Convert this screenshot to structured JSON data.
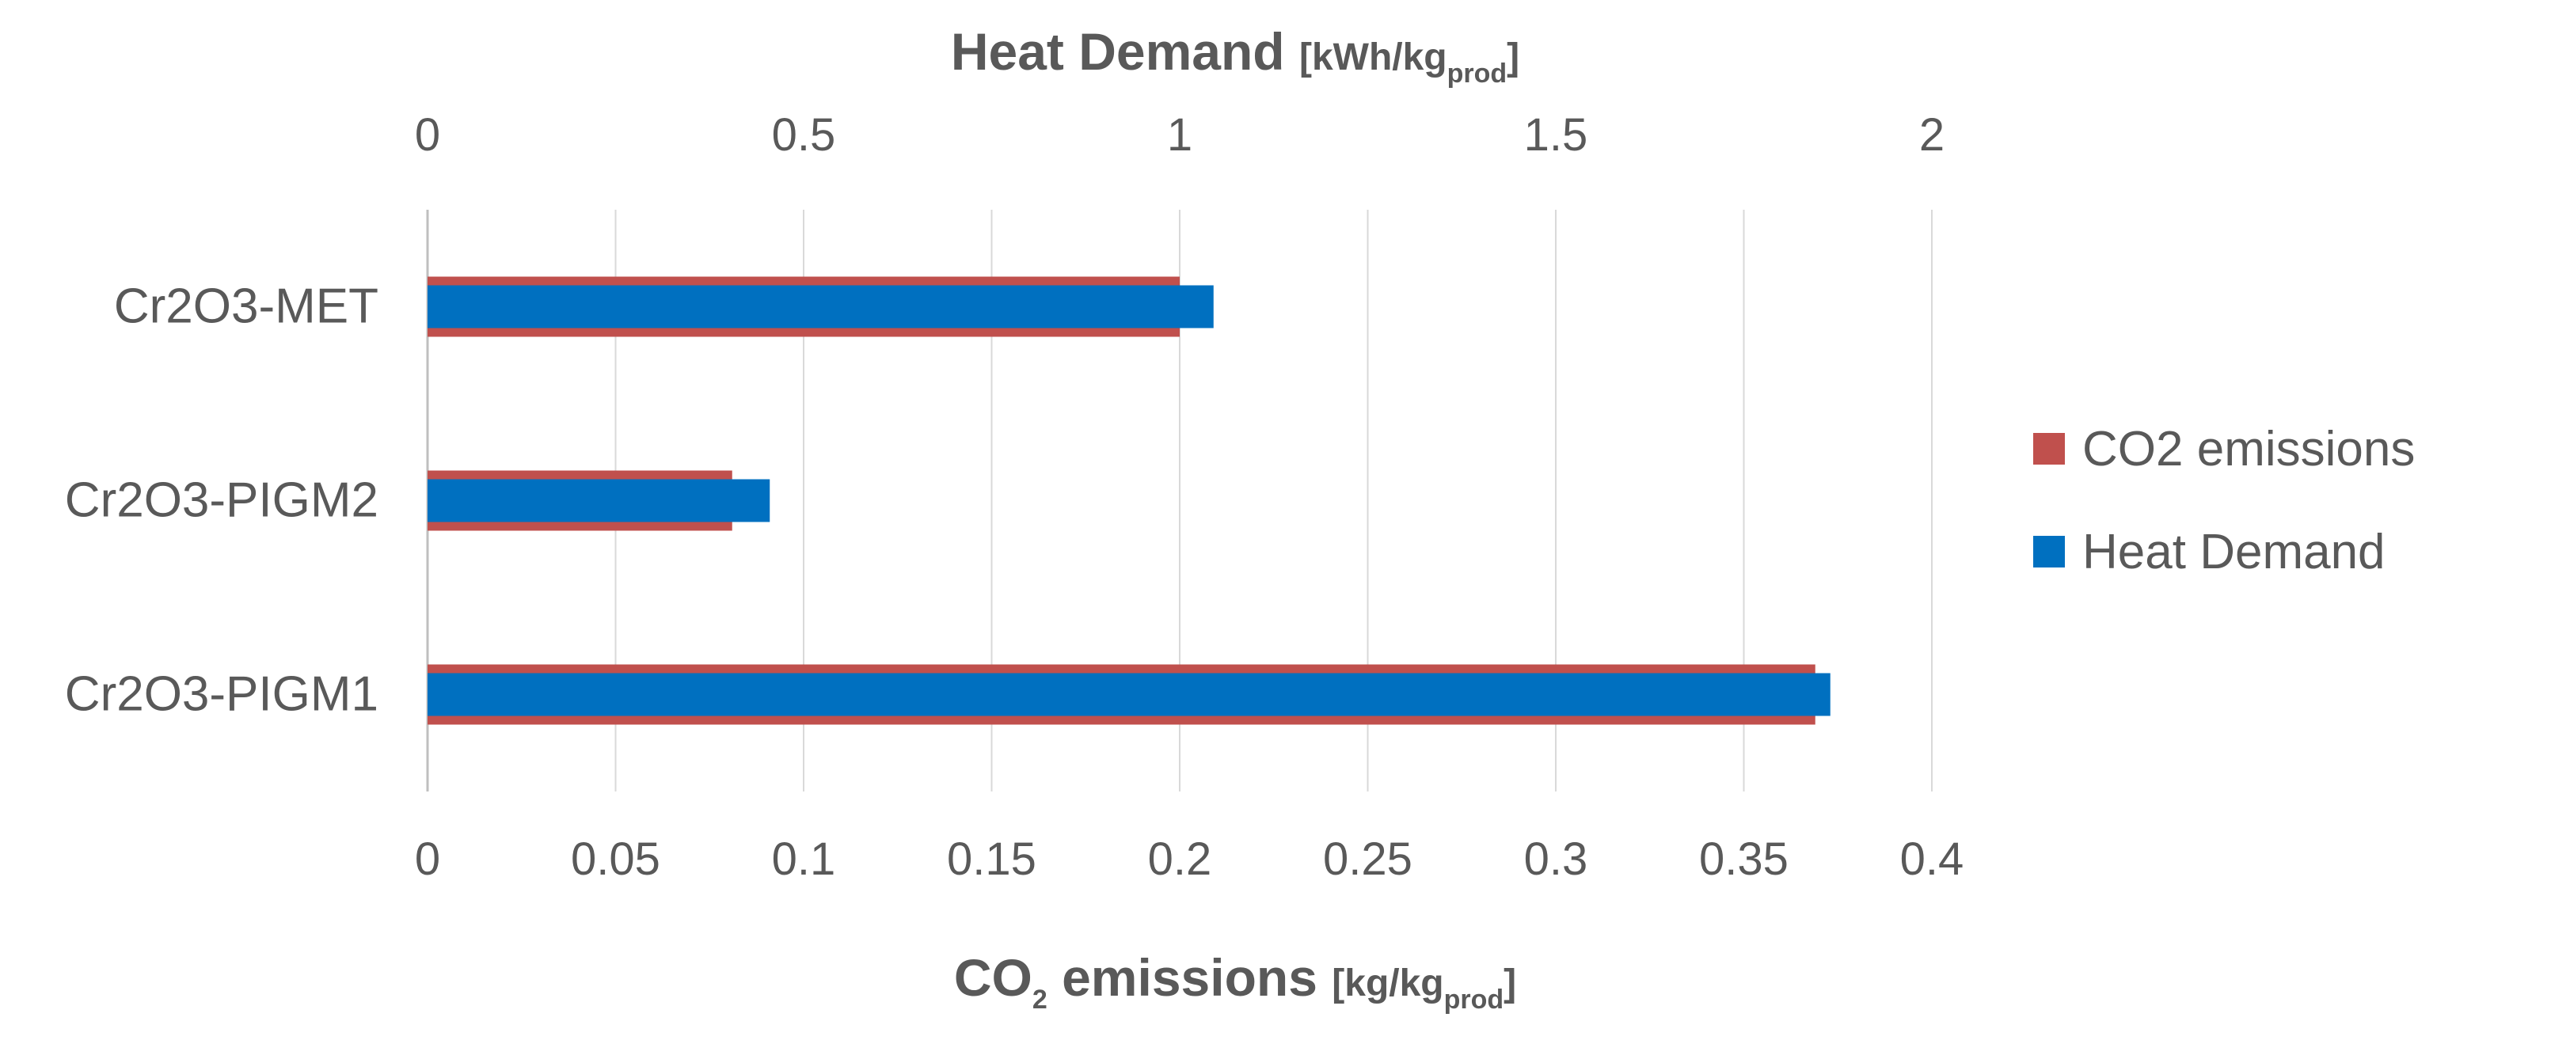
{
  "chart_data": {
    "type": "bar",
    "orientation": "horizontal",
    "categories": [
      "Cr2O3-MET",
      "Cr2O3-PIGM2",
      "Cr2O3-PIGM1"
    ],
    "series": [
      {
        "name": "CO2 emissions",
        "axis": "bottom",
        "color": "#c0504d",
        "values": [
          0.2,
          0.081,
          0.369
        ]
      },
      {
        "name": "Heat Demand",
        "axis": "top",
        "color": "#0070c0",
        "values": [
          1.045,
          0.455,
          1.865
        ]
      }
    ],
    "bottom_axis": {
      "title_main": "CO",
      "title_sub": "2",
      "title_rest": " emissions ",
      "unit_main": "[kg/kg",
      "unit_sub": "prod",
      "unit_end": "]",
      "range": [
        0,
        0.4
      ],
      "ticks": [
        "0",
        "0.05",
        "0.1",
        "0.15",
        "0.2",
        "0.25",
        "0.3",
        "0.35",
        "0.4"
      ]
    },
    "top_axis": {
      "title_main": "Heat Demand ",
      "unit_main": "[kWh/kg",
      "unit_sub": "prod",
      "unit_end": "]",
      "range": [
        0,
        2
      ],
      "ticks": [
        "0",
        "0.5",
        "1",
        "1.5",
        "2"
      ]
    },
    "grid": true,
    "legend_position": "right"
  }
}
